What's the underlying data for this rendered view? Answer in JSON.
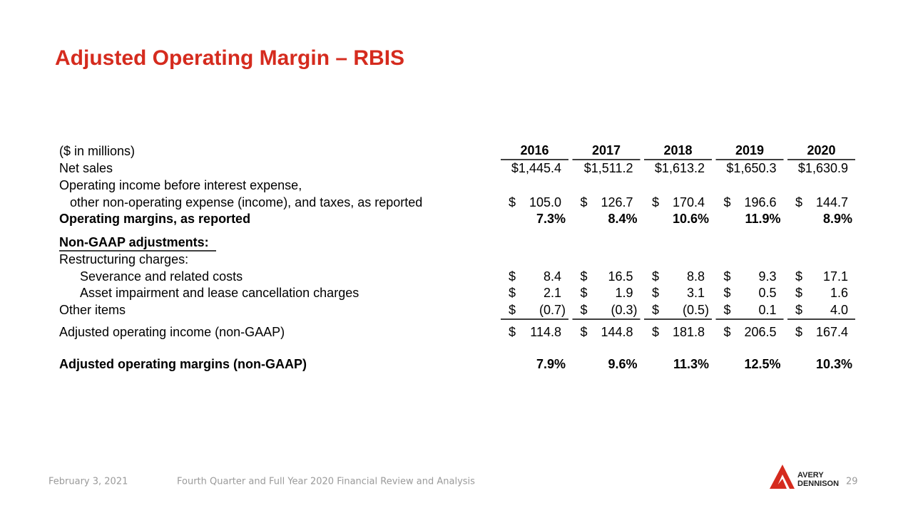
{
  "header": {
    "title": "Adjusted Operating Margin – RBIS"
  },
  "table": {
    "units": "($ in millions)",
    "years": [
      "2016",
      "2017",
      "2018",
      "2019",
      "2020"
    ],
    "rows": [
      {
        "label": [
          "Net sales"
        ],
        "values": [
          "$1,445.4",
          "$1,511.2",
          "$1,613.2",
          "$1,650.3",
          "$1,630.9"
        ]
      },
      {
        "label": [
          "Operating income before interest expense,",
          "other non-operating expense (income), and taxes, as reported"
        ],
        "currency": "$",
        "values": [
          "105.0",
          "126.7",
          "170.4",
          "196.6",
          "144.7"
        ]
      },
      {
        "label": [
          "Operating margins, as reported"
        ],
        "values": [
          "7.3%",
          "8.4%",
          "10.6%",
          "11.9%",
          "8.9%"
        ]
      },
      {
        "label": [
          "Non-GAAP adjustments:"
        ]
      },
      {
        "label": [
          "Restructuring charges:"
        ]
      },
      {
        "label": [
          "Severance and related costs"
        ],
        "currency": "$",
        "values": [
          "8.4",
          "16.5",
          "8.8",
          "9.3",
          "17.1"
        ]
      },
      {
        "label": [
          "Asset impairment and lease cancellation charges"
        ],
        "currency": "$",
        "values": [
          "2.1",
          "1.9",
          "3.1",
          "0.5",
          "1.6"
        ]
      },
      {
        "label": [
          "Other items"
        ],
        "currency": "$",
        "values": [
          "(0.7)",
          "(0.3)",
          "(0.5)",
          "0.1",
          "4.0"
        ]
      },
      {
        "label": [
          "Adjusted operating income (non-GAAP)"
        ],
        "currency": "$",
        "values": [
          "114.8",
          "144.8",
          "181.8",
          "206.5",
          "167.4"
        ]
      },
      {
        "label": [
          "Adjusted operating margins (non-GAAP)"
        ],
        "values": [
          "7.9%",
          "9.6%",
          "11.3%",
          "12.5%",
          "10.3%"
        ]
      }
    ]
  },
  "footer": {
    "date": "February 3, 2021",
    "subtitle": "Fourth Quarter and Full Year 2020 Financial Review and Analysis",
    "logo": [
      "AVERY",
      "DENNISON"
    ],
    "page": "29"
  }
}
